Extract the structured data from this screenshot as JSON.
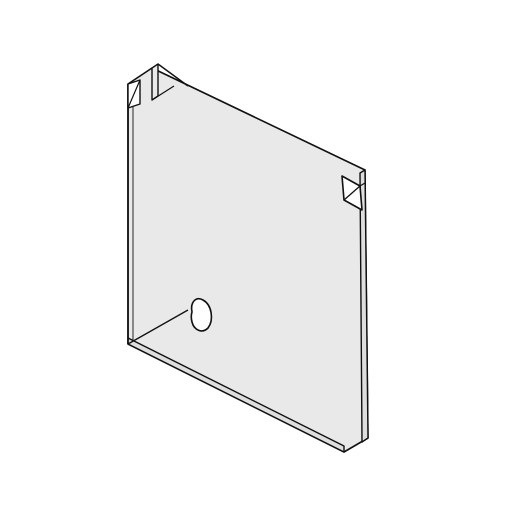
{
  "drawing": {
    "type": "isometric line drawing of a flat bracket plate",
    "colors": {
      "background": "#ffffff",
      "line": "#111111",
      "face": "#e9e9e9",
      "face_shade": "#dedede",
      "slot": "#ffffff"
    },
    "parts": [
      "plate-face",
      "top-bent-tab",
      "bottom-edge-thickness",
      "right-edge-thickness",
      "left-slot",
      "right-slot",
      "mounting-hole",
      "crease-line"
    ]
  }
}
